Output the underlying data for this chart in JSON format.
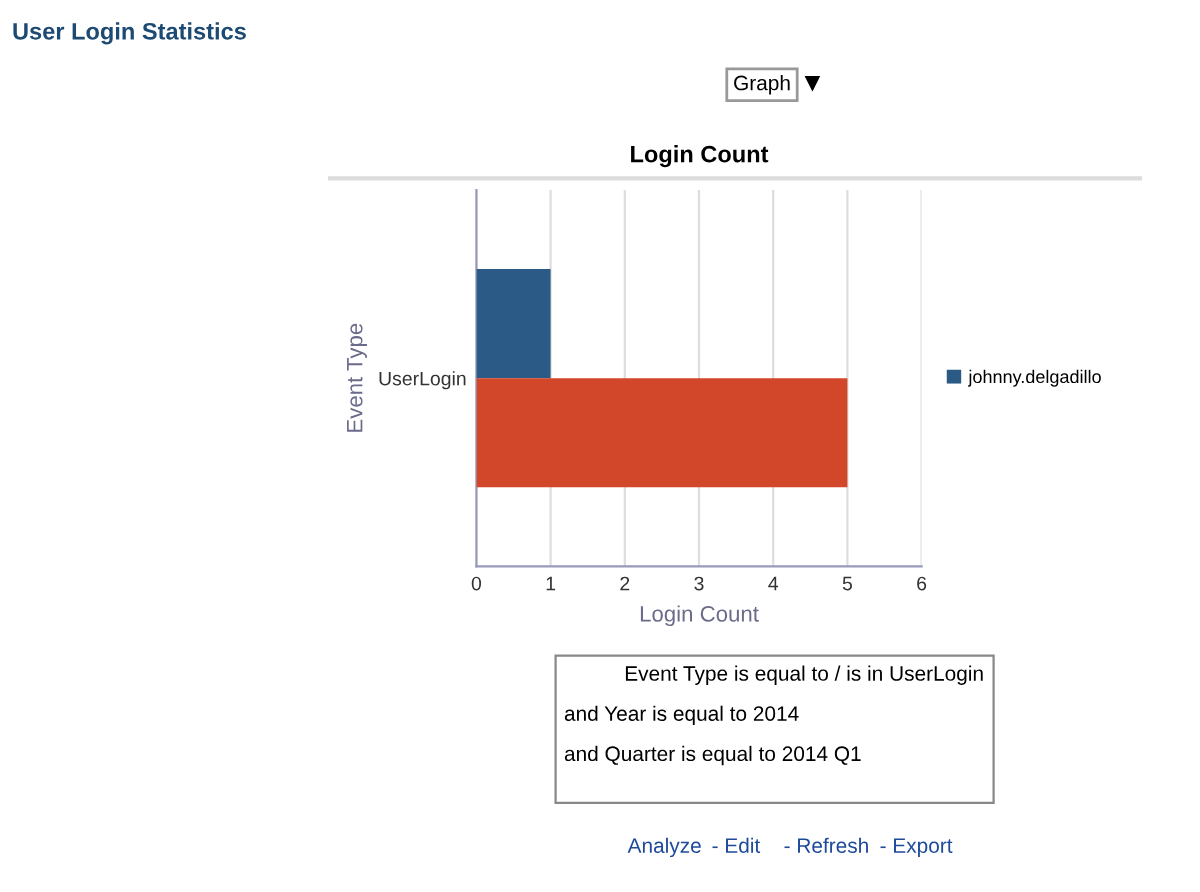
{
  "chart_data": {
    "type": "bar",
    "title": "Login Count",
    "subtitle": "User Login Statistics",
    "xlabel": "Login Count",
    "ylabel": "Event Type",
    "orientation": "horizontal",
    "categories": [
      "UserLogin"
    ],
    "series": [
      {
        "name": "johnny.delgadillo",
        "color": "#2b5a86",
        "values": [
          1
        ]
      },
      {
        "color": "#d2462a",
        "values": [
          5
        ]
      }
    ],
    "xlim": [
      0,
      6
    ],
    "xticks": [
      0,
      1,
      2,
      3,
      4,
      5,
      6
    ],
    "grid": "x",
    "legend": "right",
    "annotations": [
      "Graph",
      "Event Type is equal to / is in UserLogin",
      "and Year is equal to 2014",
      "and Quarter is equal to 2014 Q1",
      "Analyze",
      "- Edit",
      "- Refresh",
      "- Export"
    ]
  }
}
